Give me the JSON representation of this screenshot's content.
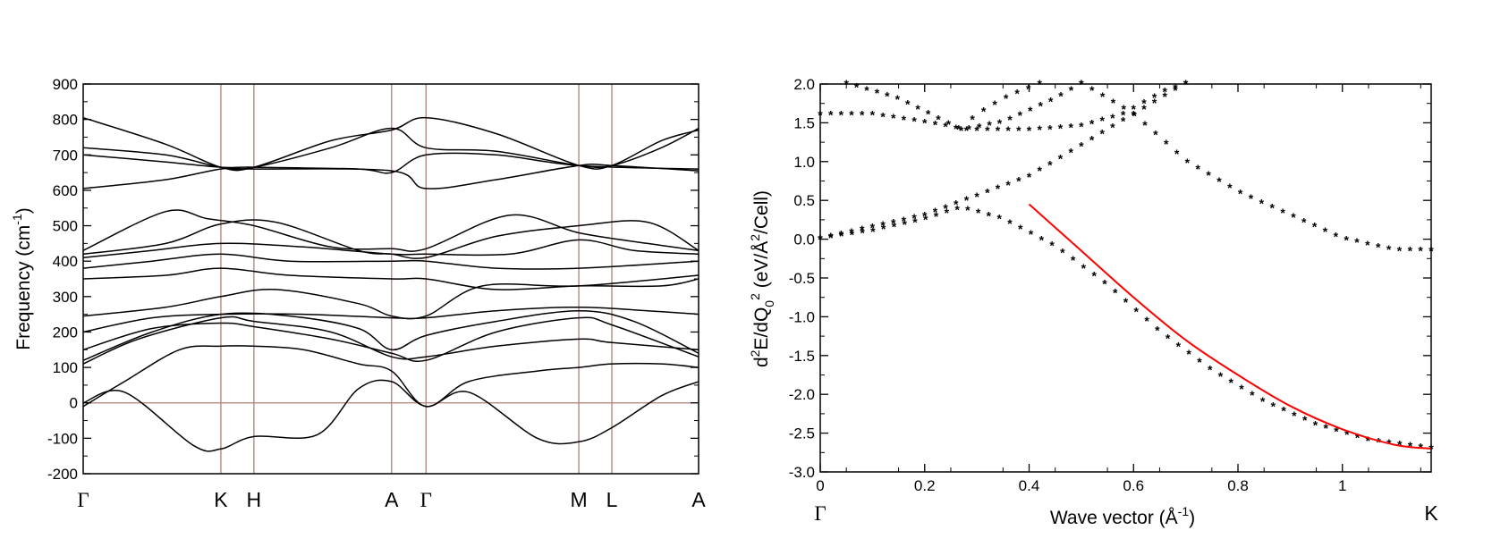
{
  "chart_data": [
    {
      "type": "line",
      "title": "",
      "xlabel": "",
      "ylabel": "Frequency (cm",
      "ylabel_sup": "-1",
      "ylabel_end": ")",
      "ylim": [
        -200,
        900
      ],
      "yticks": [
        -200,
        -100,
        0,
        100,
        200,
        300,
        400,
        500,
        600,
        700,
        800,
        900
      ],
      "high_symmetry_points": [
        {
          "label": "Γ",
          "pos": 0.0
        },
        {
          "label": "K",
          "pos": 1.0
        },
        {
          "label": "H",
          "pos": 1.24
        },
        {
          "label": "A",
          "pos": 2.24
        },
        {
          "label": "Γ",
          "pos": 2.49
        },
        {
          "label": "M",
          "pos": 3.6
        },
        {
          "label": "L",
          "pos": 3.84
        },
        {
          "label": "A",
          "pos": 4.47
        }
      ],
      "xlim": [
        0,
        4.47
      ],
      "zero_line": 0,
      "series": [
        {
          "name": "band-1",
          "values": [
            [
              0,
              0
            ],
            [
              0.3,
              30
            ],
            [
              0.8,
              -120
            ],
            [
              1.0,
              -130
            ],
            [
              1.24,
              -95
            ],
            [
              1.7,
              -90
            ],
            [
              2.0,
              40
            ],
            [
              2.24,
              60
            ],
            [
              2.49,
              -10
            ],
            [
              2.8,
              30
            ],
            [
              3.3,
              -100
            ],
            [
              3.6,
              -110
            ],
            [
              3.84,
              -70
            ],
            [
              4.2,
              20
            ],
            [
              4.47,
              60
            ]
          ]
        },
        {
          "name": "band-2",
          "values": [
            [
              0,
              -10
            ],
            [
              0.3,
              60
            ],
            [
              0.7,
              150
            ],
            [
              1.0,
              160
            ],
            [
              1.24,
              160
            ],
            [
              1.6,
              150
            ],
            [
              2.0,
              110
            ],
            [
              2.24,
              90
            ],
            [
              2.49,
              -10
            ],
            [
              2.8,
              60
            ],
            [
              3.3,
              90
            ],
            [
              3.6,
              100
            ],
            [
              3.84,
              110
            ],
            [
              4.2,
              110
            ],
            [
              4.47,
              100
            ]
          ]
        },
        {
          "name": "band-3",
          "values": [
            [
              0,
              110
            ],
            [
              0.4,
              180
            ],
            [
              1.0,
              240
            ],
            [
              1.24,
              230
            ],
            [
              1.8,
              200
            ],
            [
              2.24,
              130
            ],
            [
              2.49,
              130
            ],
            [
              3.0,
              160
            ],
            [
              3.6,
              180
            ],
            [
              3.84,
              170
            ],
            [
              4.47,
              150
            ]
          ]
        },
        {
          "name": "band-4",
          "values": [
            [
              0,
              120
            ],
            [
              0.5,
              200
            ],
            [
              1.0,
              250
            ],
            [
              1.5,
              245
            ],
            [
              2.0,
              210
            ],
            [
              2.24,
              150
            ],
            [
              2.49,
              190
            ],
            [
              3.0,
              230
            ],
            [
              3.6,
              260
            ],
            [
              4.0,
              230
            ],
            [
              4.47,
              140
            ]
          ]
        },
        {
          "name": "band-5",
          "values": [
            [
              0,
              150
            ],
            [
              0.5,
              210
            ],
            [
              1.0,
              225
            ],
            [
              1.24,
              215
            ],
            [
              1.8,
              180
            ],
            [
              2.24,
              140
            ],
            [
              2.49,
              120
            ],
            [
              3.0,
              200
            ],
            [
              3.6,
              240
            ],
            [
              3.84,
              220
            ],
            [
              4.47,
              130
            ]
          ]
        },
        {
          "name": "band-6",
          "values": [
            [
              0,
              200
            ],
            [
              0.5,
              240
            ],
            [
              1.0,
              250
            ],
            [
              1.6,
              250
            ],
            [
              2.24,
              240
            ],
            [
              2.49,
              240
            ],
            [
              3.0,
              260
            ],
            [
              3.6,
              270
            ],
            [
              4.1,
              260
            ],
            [
              4.47,
              250
            ]
          ]
        },
        {
          "name": "band-7",
          "values": [
            [
              0,
              245
            ],
            [
              0.6,
              270
            ],
            [
              1.0,
              300
            ],
            [
              1.4,
              320
            ],
            [
              2.0,
              280
            ],
            [
              2.24,
              245
            ],
            [
              2.49,
              245
            ],
            [
              2.9,
              330
            ],
            [
              3.6,
              330
            ],
            [
              4.47,
              360
            ]
          ]
        },
        {
          "name": "band-8",
          "values": [
            [
              0,
              350
            ],
            [
              0.6,
              360
            ],
            [
              1.0,
              380
            ],
            [
              1.5,
              360
            ],
            [
              2.24,
              350
            ],
            [
              2.49,
              350
            ],
            [
              3.0,
              320
            ],
            [
              3.6,
              330
            ],
            [
              4.2,
              330
            ],
            [
              4.47,
              350
            ]
          ]
        },
        {
          "name": "band-9",
          "values": [
            [
              0,
              380
            ],
            [
              0.5,
              400
            ],
            [
              1.0,
              420
            ],
            [
              1.5,
              400
            ],
            [
              2.24,
              400
            ],
            [
              2.49,
              400
            ],
            [
              3.0,
              380
            ],
            [
              3.6,
              380
            ],
            [
              4.47,
              400
            ]
          ]
        },
        {
          "name": "band-10",
          "values": [
            [
              0,
              410
            ],
            [
              0.5,
              430
            ],
            [
              1.0,
              450
            ],
            [
              1.6,
              440
            ],
            [
              2.24,
              420
            ],
            [
              2.49,
              420
            ],
            [
              3.1,
              420
            ],
            [
              3.6,
              460
            ],
            [
              4.0,
              430
            ],
            [
              4.47,
              420
            ]
          ]
        },
        {
          "name": "band-11",
          "values": [
            [
              0,
              420
            ],
            [
              0.6,
              450
            ],
            [
              1.0,
              505
            ],
            [
              1.4,
              510
            ],
            [
              2.0,
              430
            ],
            [
              2.24,
              420
            ],
            [
              2.49,
              410
            ],
            [
              3.0,
              470
            ],
            [
              3.6,
              500
            ],
            [
              4.1,
              510
            ],
            [
              4.47,
              430
            ]
          ]
        },
        {
          "name": "band-12",
          "values": [
            [
              0,
              430
            ],
            [
              0.6,
              540
            ],
            [
              0.9,
              520
            ],
            [
              1.24,
              500
            ],
            [
              1.8,
              440
            ],
            [
              2.24,
              435
            ],
            [
              2.49,
              435
            ],
            [
              3.1,
              530
            ],
            [
              3.6,
              480
            ],
            [
              4.1,
              450
            ],
            [
              4.47,
              430
            ]
          ]
        },
        {
          "name": "band-13",
          "values": [
            [
              0,
              605
            ],
            [
              0.6,
              630
            ],
            [
              1.0,
              660
            ],
            [
              1.24,
              660
            ],
            [
              2.24,
              655
            ],
            [
              2.49,
              605
            ],
            [
              3.0,
              630
            ],
            [
              3.6,
              670
            ],
            [
              3.84,
              670
            ],
            [
              4.47,
              655
            ]
          ]
        },
        {
          "name": "band-14",
          "values": [
            [
              0,
              700
            ],
            [
              0.6,
              680
            ],
            [
              1.0,
              665
            ],
            [
              1.24,
              665
            ],
            [
              2.0,
              660
            ],
            [
              2.24,
              650
            ],
            [
              2.49,
              700
            ],
            [
              3.0,
              700
            ],
            [
              3.6,
              670
            ],
            [
              4.47,
              660
            ]
          ]
        },
        {
          "name": "band-15",
          "values": [
            [
              0,
              720
            ],
            [
              0.6,
              700
            ],
            [
              1.0,
              665
            ],
            [
              1.24,
              665
            ],
            [
              1.8,
              720
            ],
            [
              2.24,
              775
            ],
            [
              2.49,
              720
            ],
            [
              3.0,
              710
            ],
            [
              3.6,
              670
            ],
            [
              3.84,
              670
            ],
            [
              4.2,
              720
            ],
            [
              4.47,
              775
            ]
          ]
        },
        {
          "name": "band-16",
          "values": [
            [
              0,
              805
            ],
            [
              0.6,
              730
            ],
            [
              1.0,
              665
            ],
            [
              1.24,
              665
            ],
            [
              1.8,
              740
            ],
            [
              2.24,
              770
            ],
            [
              2.49,
              805
            ],
            [
              3.0,
              760
            ],
            [
              3.6,
              670
            ],
            [
              3.84,
              670
            ],
            [
              4.2,
              740
            ],
            [
              4.47,
              770
            ]
          ]
        }
      ]
    },
    {
      "type": "scatter",
      "title": "",
      "xlabel": "Wave vector (Å",
      "xlabel_sup": "-1",
      "xlabel_end": ")",
      "ylabel_parts": [
        "d",
        "2",
        "E/dQ",
        "0",
        "2",
        " (eV/Å",
        "2",
        "/Cell)"
      ],
      "xlim": [
        0,
        1.17
      ],
      "ylim": [
        -3.0,
        2.0
      ],
      "xticks": [
        0,
        0.2,
        0.4,
        0.6,
        0.8,
        1
      ],
      "xtick_labels": [
        "0",
        "0.2",
        "0.4",
        "0.6",
        "0.8",
        "1"
      ],
      "yticks": [
        -3.0,
        -2.5,
        -2.0,
        -1.5,
        -1.0,
        -0.5,
        0.0,
        0.5,
        1.0,
        1.5,
        2.0
      ],
      "ytick_labels": [
        "-3.0",
        "-2.5",
        "-2.0",
        "-1.5",
        "-1.0",
        "-0.5",
        "0.0",
        "0.5",
        "1.0",
        "1.5",
        "2.0"
      ],
      "high_symmetry_points": [
        {
          "label": "Γ",
          "pos": 0
        },
        {
          "label": "K",
          "pos": 1.17
        }
      ],
      "series": [
        {
          "name": "branch-a",
          "color": "#000000",
          "values": [
            [
              0,
              0
            ],
            [
              0.1,
              0.1
            ],
            [
              0.2,
              0.25
            ],
            [
              0.27,
              0.4
            ],
            [
              0.35,
              0.25
            ],
            [
              0.45,
              -0.1
            ],
            [
              0.55,
              -0.6
            ],
            [
              0.65,
              -1.2
            ],
            [
              0.75,
              -1.7
            ],
            [
              0.85,
              -2.1
            ],
            [
              0.95,
              -2.4
            ],
            [
              1.05,
              -2.6
            ],
            [
              1.17,
              -2.7
            ]
          ]
        },
        {
          "name": "branch-b",
          "color": "#000000",
          "values": [
            [
              0,
              0
            ],
            [
              0.2,
              0.3
            ],
            [
              0.4,
              0.8
            ],
            [
              0.6,
              1.6
            ],
            [
              0.7,
              2.0
            ]
          ]
        },
        {
          "name": "branch-c",
          "color": "#000000",
          "values": [
            [
              0,
              1.6
            ],
            [
              0.1,
              1.6
            ],
            [
              0.2,
              1.5
            ],
            [
              0.28,
              1.4
            ],
            [
              0.4,
              1.4
            ],
            [
              0.5,
              1.45
            ],
            [
              0.58,
              1.6
            ],
            [
              0.66,
              1.9
            ],
            [
              0.7,
              2.0
            ]
          ]
        },
        {
          "name": "branch-d",
          "color": "#000000",
          "values": [
            [
              0.05,
              2.0
            ],
            [
              0.15,
              1.8
            ],
            [
              0.27,
              1.4
            ],
            [
              0.35,
              1.5
            ],
            [
              0.45,
              1.8
            ],
            [
              0.5,
              2.0
            ]
          ]
        },
        {
          "name": "branch-e",
          "color": "#000000",
          "values": [
            [
              0.5,
              2.0
            ],
            [
              0.6,
              1.6
            ],
            [
              0.7,
              1.0
            ],
            [
              0.8,
              0.6
            ],
            [
              0.9,
              0.3
            ],
            [
              1.0,
              0.0
            ],
            [
              1.1,
              -0.15
            ],
            [
              1.17,
              -0.15
            ]
          ]
        },
        {
          "name": "branch-f",
          "color": "#000000",
          "values": [
            [
              0.27,
              1.4
            ],
            [
              0.3,
              1.6
            ],
            [
              0.35,
              1.8
            ],
            [
              0.42,
              2.0
            ]
          ]
        }
      ],
      "fit": {
        "name": "quadratic-fit",
        "color": "#ff0000",
        "x_range": [
          0.4,
          1.17
        ],
        "values": [
          [
            0.4,
            0.45
          ],
          [
            0.5,
            -0.15
          ],
          [
            0.6,
            -0.75
          ],
          [
            0.7,
            -1.3
          ],
          [
            0.8,
            -1.75
          ],
          [
            0.9,
            -2.15
          ],
          [
            1.0,
            -2.45
          ],
          [
            1.1,
            -2.65
          ],
          [
            1.17,
            -2.7
          ]
        ]
      }
    }
  ]
}
